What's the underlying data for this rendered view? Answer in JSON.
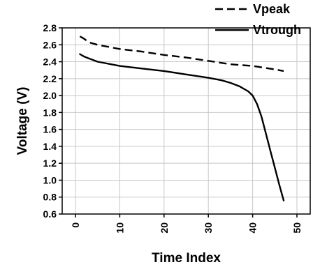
{
  "chart_data": {
    "type": "line",
    "title": "",
    "xlabel": "Time Index",
    "ylabel": "Voltage (V)",
    "xlim": [
      -3,
      53
    ],
    "ylim": [
      0.6,
      2.8
    ],
    "xticks": [
      0,
      10,
      20,
      30,
      40,
      50
    ],
    "yticks": [
      0.6,
      0.8,
      1.0,
      1.2,
      1.4,
      1.6,
      1.8,
      2.0,
      2.2,
      2.4,
      2.6,
      2.8
    ],
    "ytick_labels": [
      "0.6",
      "0.8",
      "1.0",
      "1.2",
      "1.4",
      "1.6",
      "1.8",
      "2.0",
      "2.2",
      "2.4",
      "2.6",
      "2.8"
    ],
    "grid": true,
    "legend_position": "top-right, above plot",
    "series": [
      {
        "name": "Vpeak",
        "style": "dashed",
        "color": "#000000",
        "x": [
          1,
          2,
          3,
          5,
          10,
          15,
          20,
          25,
          30,
          35,
          40,
          45,
          47
        ],
        "y": [
          2.7,
          2.67,
          2.63,
          2.6,
          2.55,
          2.52,
          2.48,
          2.45,
          2.41,
          2.37,
          2.35,
          2.31,
          2.29
        ]
      },
      {
        "name": "Vtrough",
        "style": "solid",
        "color": "#000000",
        "x": [
          1,
          2,
          3,
          5,
          10,
          15,
          20,
          25,
          30,
          33,
          35,
          37,
          38,
          39,
          40,
          41,
          42,
          43,
          44,
          45,
          46,
          47
        ],
        "y": [
          2.49,
          2.46,
          2.44,
          2.4,
          2.35,
          2.32,
          2.29,
          2.25,
          2.21,
          2.18,
          2.15,
          2.11,
          2.08,
          2.05,
          2.0,
          1.9,
          1.75,
          1.55,
          1.35,
          1.15,
          0.95,
          0.76
        ]
      }
    ]
  }
}
